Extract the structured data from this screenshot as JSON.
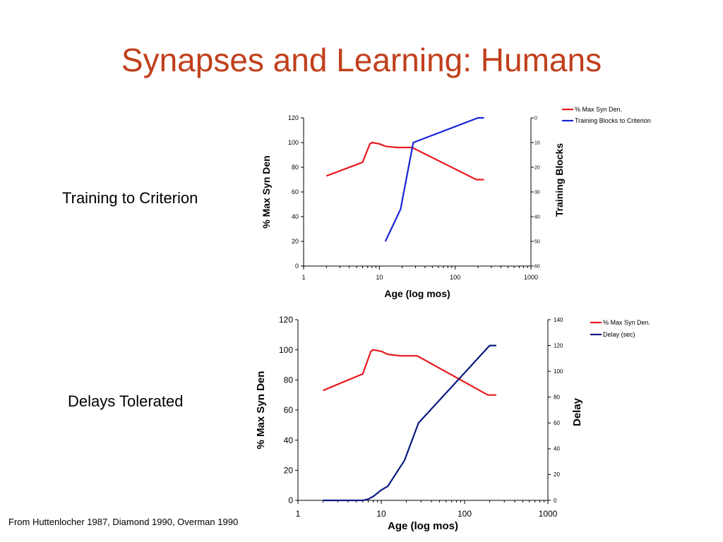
{
  "slide": {
    "title": "Synapses and Learning: Humans",
    "label_top": "Training to Criterion",
    "label_bottom": "Delays Tolerated",
    "footer": "From Huttenlocher 1987, Diamond 1990, Overman 1990"
  },
  "chart_data": [
    {
      "type": "line",
      "xlabel": "Age (log mos)",
      "ylabel": "% Max Syn Den",
      "y2label": "Training Blocks",
      "x_scale": "log",
      "xlim": [
        1,
        1000
      ],
      "ylim": [
        0,
        120
      ],
      "y2lim": [
        60,
        0
      ],
      "y2_reversed": true,
      "x_ticks": [
        "1",
        "10",
        "100",
        "1000"
      ],
      "y_ticks": [
        "0",
        "20",
        "40",
        "60",
        "80",
        "100",
        "120"
      ],
      "y2_ticks": [
        "0",
        "10",
        "20",
        "30",
        "40",
        "50",
        "60"
      ],
      "legend_position": "top-right",
      "grid": false,
      "series": [
        {
          "name": "% Max Syn Den.",
          "color": "#e8191c",
          "axis": "left",
          "x": [
            2,
            6,
            7.5,
            8,
            10,
            12,
            17,
            27,
            190,
            240
          ],
          "y": [
            73,
            84,
            99,
            100,
            99,
            97,
            96,
            96,
            70,
            70
          ]
        },
        {
          "name": "Training Blocks to Criterion",
          "color": "#1a24d6",
          "axis": "right",
          "x": [
            12,
            19,
            28,
            200,
            240
          ],
          "y": [
            50,
            37,
            10,
            0,
            0
          ]
        }
      ]
    },
    {
      "type": "line",
      "xlabel": "Age (log mos)",
      "ylabel": "% Max Syn Den",
      "y2label": "Delay",
      "x_scale": "log",
      "xlim": [
        1,
        1000
      ],
      "ylim": [
        0,
        120
      ],
      "y2lim": [
        0,
        140
      ],
      "x_ticks": [
        "1",
        "10",
        "100",
        "1000"
      ],
      "y_ticks": [
        "0",
        "20",
        "40",
        "60",
        "80",
        "100",
        "120"
      ],
      "y2_ticks": [
        "0",
        "20",
        "40",
        "60",
        "80",
        "100",
        "120",
        "140"
      ],
      "legend_position": "top-right",
      "grid": false,
      "series": [
        {
          "name": "% Max Syn Den.",
          "color": "#e8191c",
          "axis": "left",
          "x": [
            2,
            6,
            7.5,
            8,
            10,
            12,
            17,
            27,
            190,
            240
          ],
          "y": [
            73,
            84,
            99,
            100,
            99,
            97,
            96,
            96,
            70,
            70
          ]
        },
        {
          "name": "Delay (sec)",
          "color": "#0a1a80",
          "axis": "right",
          "x": [
            2,
            6,
            7,
            8,
            10,
            12,
            19,
            28,
            200,
            240
          ],
          "y": [
            0,
            0,
            1,
            3,
            8,
            11,
            31,
            60,
            120,
            120
          ]
        }
      ]
    }
  ]
}
